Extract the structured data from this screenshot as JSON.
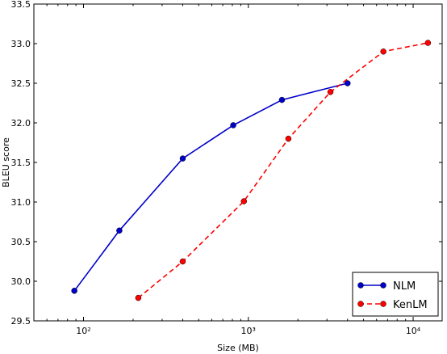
{
  "chart_data": {
    "type": "line",
    "xlabel": "Size (MB)",
    "ylabel": "BLEU score",
    "xscale": "log",
    "xlim": [
      50,
      15000
    ],
    "ylim": [
      29.5,
      33.5
    ],
    "grid": false,
    "legend_position": "bottom-right",
    "x_ticks": [
      {
        "value": 100,
        "label": "10²"
      },
      {
        "value": 1000,
        "label": "10³"
      },
      {
        "value": 10000,
        "label": "10⁴"
      }
    ],
    "y_ticks": [
      "29.5",
      "30.0",
      "30.5",
      "31.0",
      "31.5",
      "32.0",
      "32.5",
      "33.0",
      "33.5"
    ],
    "series": [
      {
        "name": "NLM",
        "color": "#0000cc",
        "line_style": "solid",
        "x": [
          88,
          165,
          400,
          810,
          1600,
          4000
        ],
        "y": [
          29.88,
          30.64,
          31.55,
          31.97,
          32.29,
          32.5
        ]
      },
      {
        "name": "KenLM",
        "color": "#ff0000",
        "line_style": "dashed",
        "x": [
          215,
          400,
          940,
          1750,
          3150,
          6600,
          12300
        ],
        "y": [
          29.79,
          30.25,
          31.01,
          31.8,
          32.39,
          32.9,
          33.01
        ]
      }
    ]
  }
}
